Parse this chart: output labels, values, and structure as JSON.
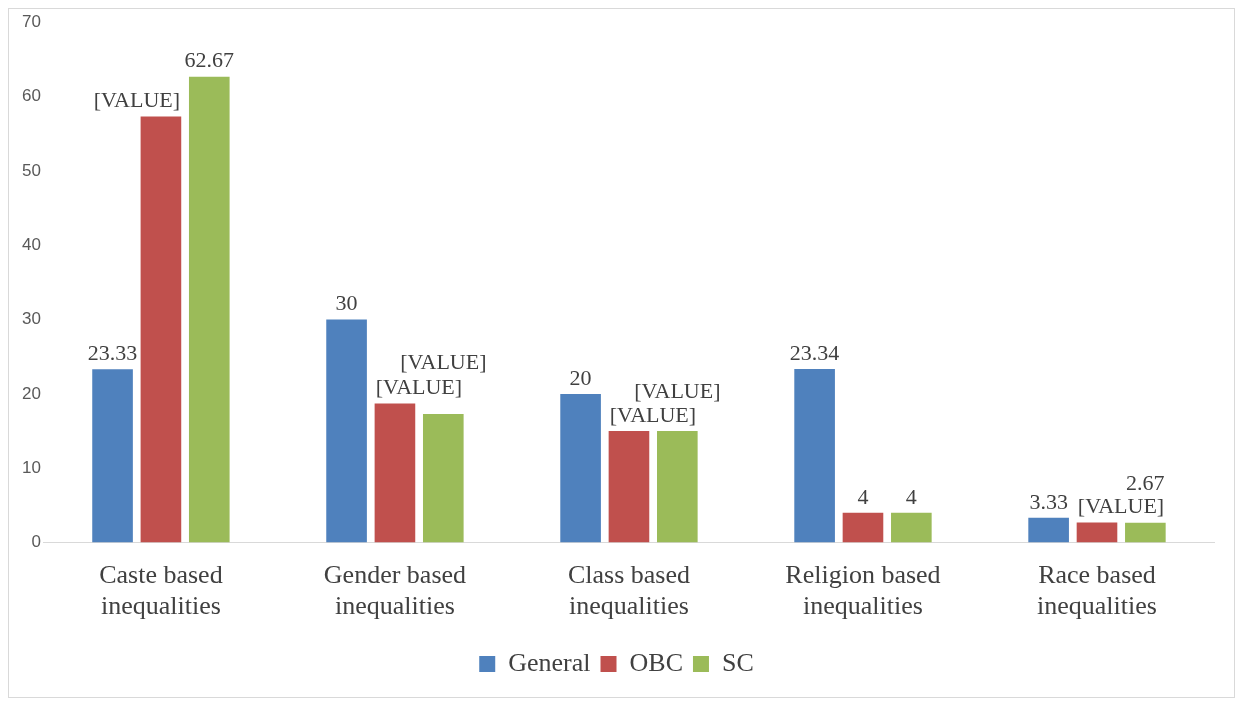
{
  "chart_data": {
    "type": "bar",
    "categories": [
      "Caste based inequalities",
      "Gender based inequalities",
      "Class based inequalities",
      "Religion based inequalities",
      "Race based inequalities"
    ],
    "series": [
      {
        "name": "General",
        "color": "#4f81bd",
        "values": [
          23.33,
          30,
          20,
          23.34,
          3.33
        ],
        "value_labels": [
          "23.33",
          "30",
          "20",
          "23.34",
          "3.33"
        ]
      },
      {
        "name": "OBC",
        "color": "#c0504d",
        "values": [
          57.3,
          18.7,
          15,
          4,
          2.7
        ],
        "value_labels": [
          "[VALUE]",
          "[VALUE]",
          "[VALUE]",
          "4",
          "[VALUE]"
        ]
      },
      {
        "name": "SC",
        "color": "#9bbb59",
        "values": [
          62.67,
          17.3,
          15,
          4,
          2.67
        ],
        "value_labels": [
          "62.67",
          "[VALUE]",
          "[VALUE]",
          "4",
          "2.67"
        ]
      }
    ],
    "ylim": [
      0,
      70
    ],
    "yticks": [
      0,
      10,
      20,
      30,
      40,
      50,
      60,
      70
    ],
    "grid": false,
    "legend": "bottom"
  }
}
